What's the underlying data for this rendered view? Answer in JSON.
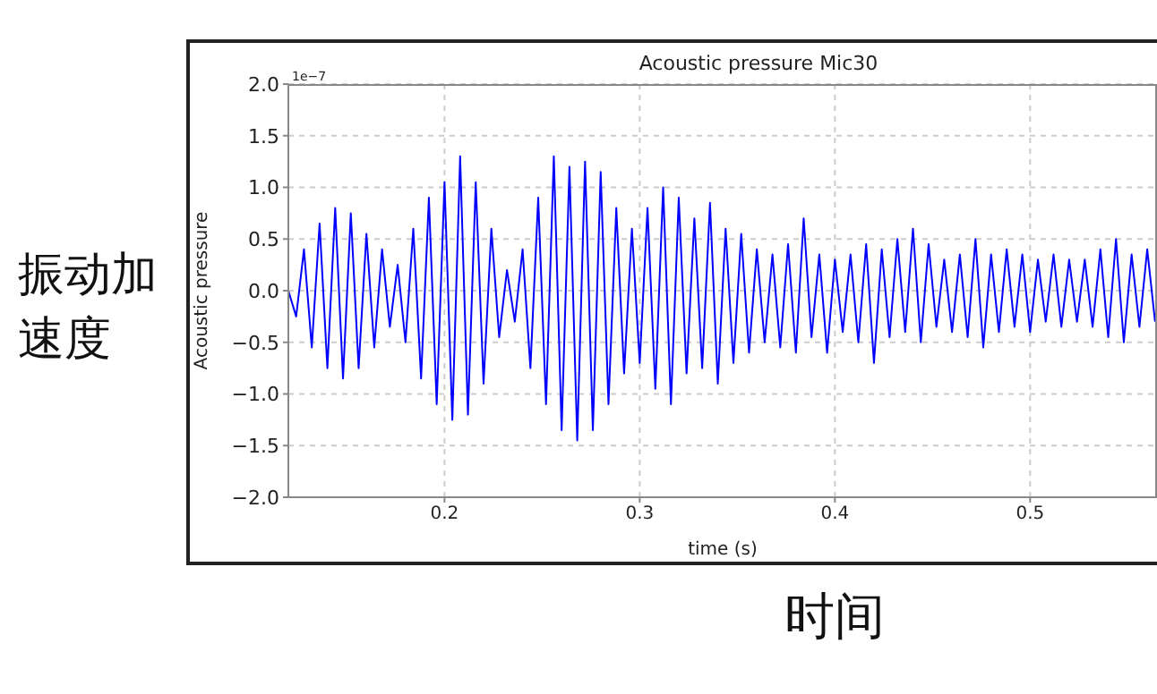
{
  "chart_data": {
    "type": "line",
    "title": "Acoustic pressure Mic30",
    "xlabel": "time (s)",
    "ylabel": "Acoustic pressure",
    "annotations": [
      "1e−7",
      "振动加速度",
      "时间"
    ],
    "xlim": [
      0.12,
      0.565
    ],
    "xticks": [
      0.2,
      0.3,
      0.4,
      0.5
    ],
    "ylim": [
      -2,
      2
    ],
    "yticks": [
      {
        "value": -2,
        "label": "−2.0"
      },
      {
        "value": -1.5,
        "label": "−1.5"
      },
      {
        "value": -1,
        "label": "−1.0"
      },
      {
        "value": -0.5,
        "label": "−0.5"
      },
      {
        "value": 0,
        "label": "0.0"
      },
      {
        "value": 0.5,
        "label": "0.5"
      },
      {
        "value": 1,
        "label": "1.0"
      },
      {
        "value": 1.5,
        "label": "1.5"
      },
      {
        "value": 2,
        "label": "2.0"
      }
    ],
    "grid": true,
    "marker": "none",
    "line_style": "solid",
    "x": [
      0.12,
      0.124,
      0.128,
      0.132,
      0.136,
      0.14,
      0.144,
      0.148,
      0.152,
      0.156,
      0.16,
      0.164,
      0.168,
      0.172,
      0.176,
      0.18,
      0.184,
      0.188,
      0.192,
      0.196,
      0.2,
      0.204,
      0.208,
      0.212,
      0.216,
      0.22,
      0.224,
      0.228,
      0.232,
      0.236,
      0.24,
      0.244,
      0.248,
      0.252,
      0.256,
      0.26,
      0.264,
      0.268,
      0.272,
      0.276,
      0.28,
      0.284,
      0.288,
      0.292,
      0.296,
      0.3,
      0.304,
      0.308,
      0.312,
      0.316,
      0.32,
      0.324,
      0.328,
      0.332,
      0.336,
      0.34,
      0.344,
      0.348,
      0.352,
      0.356,
      0.36,
      0.364,
      0.368,
      0.372,
      0.376,
      0.38,
      0.384,
      0.388,
      0.392,
      0.396,
      0.4,
      0.404,
      0.408,
      0.412,
      0.416,
      0.42,
      0.424,
      0.428,
      0.432,
      0.436,
      0.44,
      0.444,
      0.448,
      0.452,
      0.456,
      0.46,
      0.464,
      0.468,
      0.472,
      0.476,
      0.48,
      0.484,
      0.488,
      0.492,
      0.496,
      0.5,
      0.504,
      0.508,
      0.512,
      0.516,
      0.52,
      0.524,
      0.528,
      0.532,
      0.536,
      0.54,
      0.544,
      0.548,
      0.552,
      0.556,
      0.56,
      0.564
    ],
    "series": [
      {
        "color": "#0000ff",
        "values": [
          0,
          -0.25,
          0.4,
          -0.55,
          0.65,
          -0.75,
          0.8,
          -0.85,
          0.75,
          -0.75,
          0.55,
          -0.55,
          0.4,
          -0.35,
          0.25,
          -0.5,
          0.6,
          -0.85,
          0.9,
          -1.1,
          1.05,
          -1.25,
          1.3,
          -1.2,
          1.05,
          -0.9,
          0.6,
          -0.45,
          0.2,
          -0.3,
          0.4,
          -0.75,
          0.9,
          -1.1,
          1.3,
          -1.35,
          1.2,
          -1.45,
          1.25,
          -1.35,
          1.15,
          -1.1,
          0.8,
          -0.8,
          0.6,
          -0.7,
          0.8,
          -0.95,
          1.0,
          -1.1,
          0.9,
          -0.8,
          0.7,
          -0.75,
          0.85,
          -0.9,
          0.6,
          -0.7,
          0.55,
          -0.6,
          0.4,
          -0.5,
          0.35,
          -0.55,
          0.45,
          -0.6,
          0.7,
          -0.45,
          0.35,
          -0.6,
          0.3,
          -0.4,
          0.35,
          -0.5,
          0.45,
          -0.7,
          0.4,
          -0.45,
          0.5,
          -0.4,
          0.6,
          -0.5,
          0.45,
          -0.35,
          0.3,
          -0.4,
          0.35,
          -0.45,
          0.5,
          -0.55,
          0.35,
          -0.4,
          0.4,
          -0.35,
          0.35,
          -0.4,
          0.3,
          -0.3,
          0.35,
          -0.35,
          0.3,
          -0.3,
          0.3,
          -0.35,
          0.4,
          -0.45,
          0.5,
          -0.5,
          0.35,
          -0.35,
          0.4,
          -0.3
        ]
      }
    ]
  }
}
